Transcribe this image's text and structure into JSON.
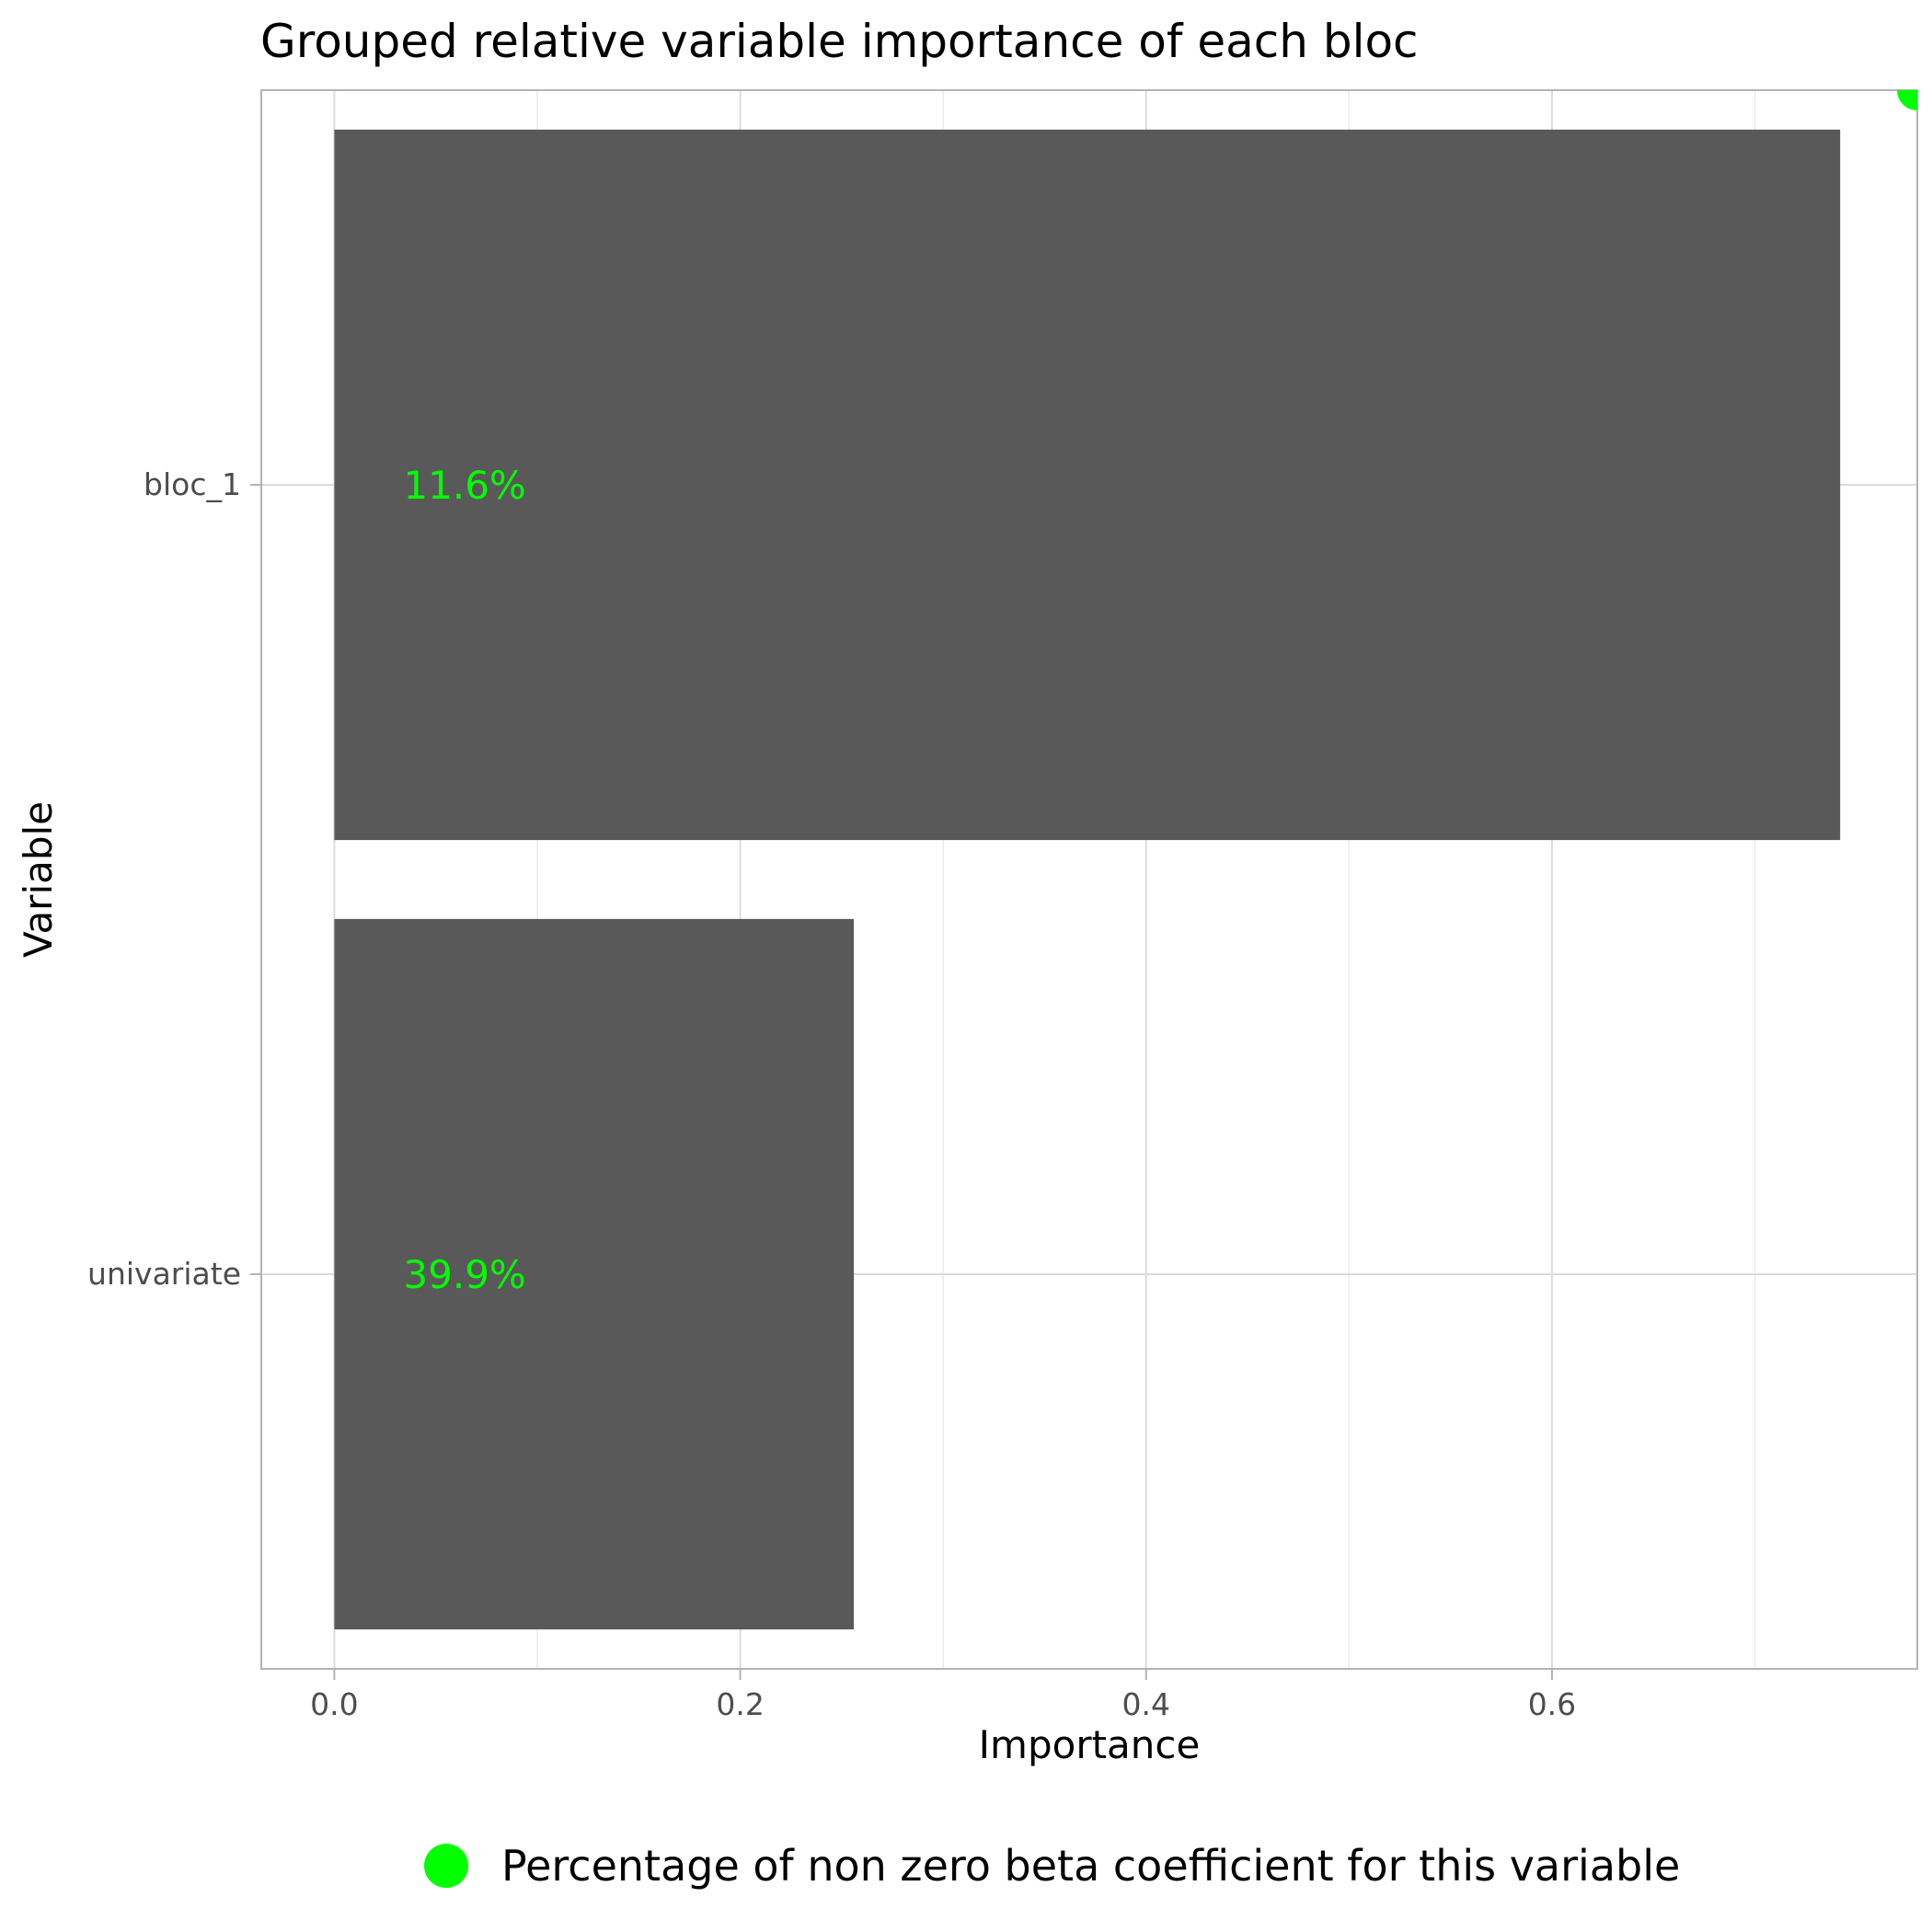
{
  "chart_data": {
    "type": "bar",
    "orientation": "horizontal",
    "title": "Grouped relative variable importance of each bloc",
    "xlabel": "Importance",
    "ylabel": "Variable",
    "categories": [
      "bloc_1",
      "univariate"
    ],
    "values": [
      0.742,
      0.256
    ],
    "bar_labels": [
      "11.6%",
      "39.9%"
    ],
    "xlim": [
      -0.036,
      0.78
    ],
    "x_ticks": [
      0.0,
      0.2,
      0.4,
      0.6
    ],
    "x_tick_labels": [
      "0.0",
      "0.2",
      "0.4",
      "0.6"
    ],
    "grid": true,
    "legend": {
      "position": "bottom",
      "entries": [
        {
          "label": "Percentage of non zero beta coefficient for this variable",
          "marker": "circle"
        }
      ]
    },
    "colors": {
      "bar": "#595959",
      "label": "#00ff00",
      "legend_marker": "#00ff00"
    }
  }
}
